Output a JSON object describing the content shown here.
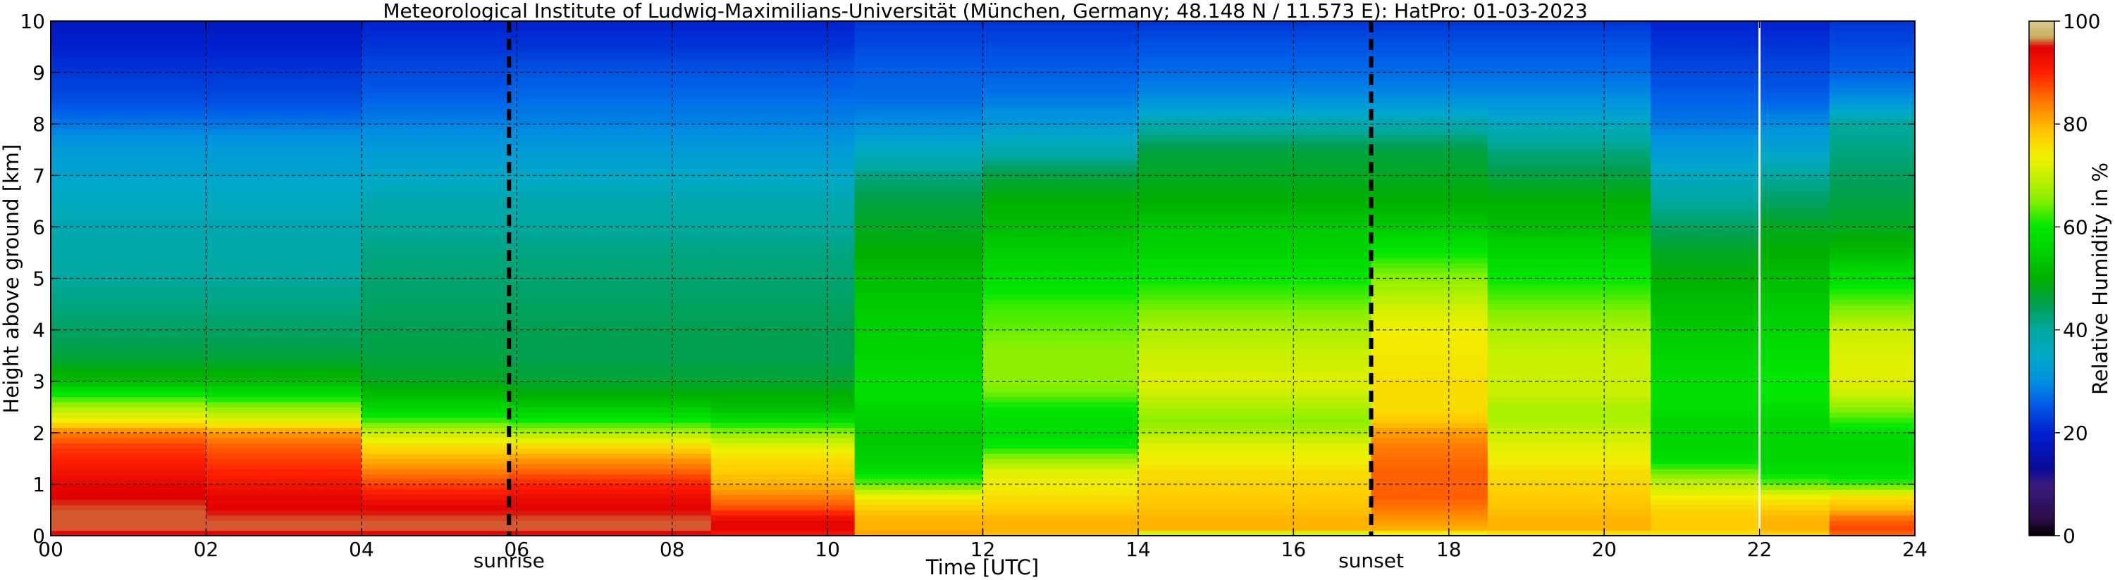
{
  "chart_data": {
    "type": "heatmap",
    "title": "Meteorological Institute of Ludwig-Maximilians-Universität (München, Germany; 48.148 N / 11.573 E):    HatPro: 01-03-2023",
    "xlabel": "Time [UTC]",
    "ylabel": "Height above ground [km]",
    "colorbar_label": "Relative Humidity in %",
    "xlim": [
      0,
      24
    ],
    "ylim": [
      0,
      10
    ],
    "clim": [
      0,
      100
    ],
    "x_ticks": [
      {
        "value": 0,
        "label": "00"
      },
      {
        "value": 2,
        "label": "02"
      },
      {
        "value": 4,
        "label": "04"
      },
      {
        "value": 6,
        "label": "06"
      },
      {
        "value": 8,
        "label": "08"
      },
      {
        "value": 10,
        "label": "10"
      },
      {
        "value": 12,
        "label": "12"
      },
      {
        "value": 14,
        "label": "14"
      },
      {
        "value": 16,
        "label": "16"
      },
      {
        "value": 18,
        "label": "18"
      },
      {
        "value": 20,
        "label": "20"
      },
      {
        "value": 22,
        "label": "22"
      },
      {
        "value": 24,
        "label": "24"
      }
    ],
    "y_ticks": [
      {
        "value": 0,
        "label": "0"
      },
      {
        "value": 1,
        "label": "1"
      },
      {
        "value": 2,
        "label": "2"
      },
      {
        "value": 3,
        "label": "3"
      },
      {
        "value": 4,
        "label": "4"
      },
      {
        "value": 5,
        "label": "5"
      },
      {
        "value": 6,
        "label": "6"
      },
      {
        "value": 7,
        "label": "7"
      },
      {
        "value": 8,
        "label": "8"
      },
      {
        "value": 9,
        "label": "9"
      },
      {
        "value": 10,
        "label": "10"
      }
    ],
    "colorbar_ticks": [
      {
        "value": 0,
        "label": "0"
      },
      {
        "value": 20,
        "label": "20"
      },
      {
        "value": 40,
        "label": "40"
      },
      {
        "value": 60,
        "label": "60"
      },
      {
        "value": 80,
        "label": "80"
      },
      {
        "value": 100,
        "label": "100"
      }
    ],
    "events": [
      {
        "label": "sunrise",
        "time": 5.9
      },
      {
        "label": "sunset",
        "time": 17.0
      }
    ],
    "gaps": [
      22.0
    ],
    "grid": true,
    "colormap": [
      [
        0,
        "#000000"
      ],
      [
        3,
        "#2a0a45"
      ],
      [
        10,
        "#3a1b80"
      ],
      [
        13,
        "#0a0a96"
      ],
      [
        20,
        "#0020d0"
      ],
      [
        26,
        "#0060e8"
      ],
      [
        30,
        "#0090e0"
      ],
      [
        35,
        "#00a8c8"
      ],
      [
        40,
        "#00a8a0"
      ],
      [
        45,
        "#00a050"
      ],
      [
        50,
        "#00b000"
      ],
      [
        55,
        "#00d000"
      ],
      [
        60,
        "#00e800"
      ],
      [
        65,
        "#80f000"
      ],
      [
        70,
        "#c8f000"
      ],
      [
        74,
        "#f0f000"
      ],
      [
        78,
        "#ffcc00"
      ],
      [
        82,
        "#ff9900"
      ],
      [
        86,
        "#ff6000"
      ],
      [
        90,
        "#ff2000"
      ],
      [
        95,
        "#e00000"
      ],
      [
        97,
        "#c8b060"
      ],
      [
        100,
        "#d8c890"
      ]
    ],
    "profile_levels_km": [
      0,
      0.1,
      0.3,
      0.5,
      0.75,
      1.0,
      1.25,
      1.5,
      1.75,
      2.0,
      2.25,
      2.5,
      2.75,
      3.0,
      3.5,
      4.0,
      4.5,
      5.0,
      5.5,
      6.0,
      6.5,
      7.0,
      7.5,
      8.0,
      8.5,
      9.0,
      9.5,
      10.0
    ],
    "profiles": [
      {
        "start": 0.0,
        "end": 2.0,
        "values": [
          92,
          96,
          96,
          96,
          95,
          94,
          92,
          90,
          88,
          84,
          74,
          68,
          60,
          52,
          46,
          44,
          42,
          40,
          39,
          38,
          36,
          34,
          32,
          28,
          24,
          22,
          20,
          18
        ]
      },
      {
        "start": 2.0,
        "end": 4.0,
        "values": [
          92,
          96,
          96,
          95,
          94,
          92,
          90,
          88,
          86,
          82,
          72,
          66,
          58,
          52,
          46,
          44,
          42,
          40,
          39,
          38,
          36,
          34,
          32,
          28,
          24,
          22,
          20,
          18
        ]
      },
      {
        "start": 4.0,
        "end": 5.9,
        "values": [
          92,
          96,
          96,
          95,
          92,
          88,
          84,
          80,
          76,
          70,
          62,
          56,
          52,
          48,
          46,
          45,
          44,
          43,
          42,
          40,
          38,
          35,
          32,
          29,
          26,
          24,
          22,
          20
        ]
      },
      {
        "start": 5.9,
        "end": 8.5,
        "values": [
          93,
          96,
          96,
          95,
          93,
          90,
          86,
          82,
          76,
          68,
          60,
          54,
          50,
          47,
          45,
          45,
          44,
          43,
          42,
          40,
          38,
          35,
          32,
          29,
          27,
          25,
          22,
          20
        ]
      },
      {
        "start": 8.5,
        "end": 10.35,
        "values": [
          90,
          94,
          94,
          88,
          84,
          80,
          78,
          76,
          72,
          66,
          58,
          52,
          50,
          47,
          45,
          45,
          44,
          43,
          42,
          40,
          38,
          35,
          32,
          29,
          27,
          25,
          22,
          20
        ]
      },
      {
        "start": 10.35,
        "end": 12.0,
        "values": [
          82,
          80,
          80,
          78,
          74,
          64,
          58,
          55,
          54,
          54,
          55,
          56,
          58,
          58,
          56,
          55,
          54,
          52,
          50,
          48,
          46,
          42,
          36,
          30,
          27,
          26,
          24,
          22
        ]
      },
      {
        "start": 12.0,
        "end": 14.0,
        "values": [
          78,
          80,
          80,
          78,
          76,
          74,
          72,
          66,
          60,
          58,
          58,
          60,
          64,
          66,
          66,
          64,
          62,
          58,
          55,
          52,
          50,
          46,
          38,
          32,
          28,
          26,
          24,
          22
        ]
      },
      {
        "start": 14.0,
        "end": 17.0,
        "values": [
          64,
          80,
          80,
          79,
          78,
          77,
          76,
          74,
          72,
          68,
          66,
          68,
          70,
          72,
          70,
          68,
          64,
          60,
          56,
          54,
          50,
          48,
          46,
          38,
          30,
          27,
          25,
          22
        ]
      },
      {
        "start": 17.0,
        "end": 18.5,
        "values": [
          68,
          80,
          82,
          84,
          86,
          86,
          86,
          85,
          84,
          82,
          78,
          76,
          76,
          76,
          75,
          74,
          70,
          66,
          60,
          54,
          50,
          48,
          46,
          38,
          30,
          27,
          25,
          22
        ]
      },
      {
        "start": 18.5,
        "end": 20.6,
        "values": [
          72,
          80,
          80,
          79,
          78,
          77,
          76,
          74,
          72,
          70,
          68,
          68,
          70,
          70,
          70,
          68,
          64,
          60,
          56,
          52,
          50,
          46,
          42,
          36,
          30,
          27,
          25,
          22
        ]
      },
      {
        "start": 20.6,
        "end": 22.0,
        "values": [
          74,
          78,
          78,
          77,
          74,
          70,
          64,
          58,
          56,
          56,
          56,
          58,
          58,
          58,
          56,
          54,
          52,
          50,
          48,
          44,
          40,
          36,
          32,
          28,
          26,
          24,
          22,
          20
        ]
      },
      {
        "start": 22.0,
        "end": 22.9,
        "values": [
          76,
          80,
          80,
          78,
          74,
          64,
          58,
          56,
          56,
          56,
          56,
          58,
          60,
          60,
          58,
          56,
          54,
          52,
          50,
          48,
          44,
          40,
          34,
          30,
          26,
          24,
          22,
          20
        ]
      },
      {
        "start": 22.9,
        "end": 24.0,
        "values": [
          84,
          88,
          86,
          80,
          76,
          62,
          58,
          56,
          56,
          58,
          62,
          66,
          70,
          72,
          72,
          70,
          64,
          58,
          52,
          48,
          46,
          44,
          42,
          40,
          30,
          26,
          24,
          22
        ]
      }
    ]
  }
}
